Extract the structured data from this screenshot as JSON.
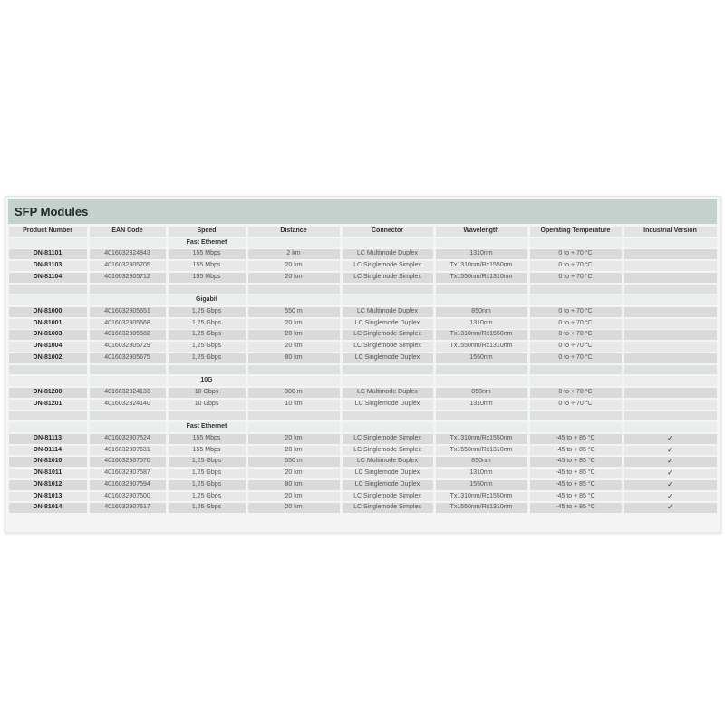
{
  "title": "SFP Modules",
  "columns": [
    "Product Number",
    "EAN Code",
    "Speed",
    "Distance",
    "Connector",
    "Wavelength",
    "Operating Temperature",
    "Industrial Version"
  ],
  "rows": [
    {
      "type": "group",
      "label": "Fast Ethernet"
    },
    {
      "type": "item",
      "product": "DN-81101",
      "ean": "4016032324843",
      "speed": "155 Mbps",
      "distance": "2 km",
      "connector": "LC Multimode Duplex",
      "wavelength": "1310nm",
      "temp": "0 to + 70 °C",
      "industrial": ""
    },
    {
      "type": "item",
      "product": "DN-81103",
      "ean": "4016032305705",
      "speed": "155 Mbps",
      "distance": "20 km",
      "connector": "LC Singlemode Simplex",
      "wavelength": "Tx1310nm/Rx1550nm",
      "temp": "0 to + 70 °C",
      "industrial": ""
    },
    {
      "type": "item",
      "product": "DN-81104",
      "ean": "4016032305712",
      "speed": "155 Mbps",
      "distance": "20 km",
      "connector": "LC Singlemode Simplex",
      "wavelength": "Tx1550nm/Rx1310nm",
      "temp": "0 to + 70 °C",
      "industrial": ""
    },
    {
      "type": "blank"
    },
    {
      "type": "group",
      "label": "Gigabit"
    },
    {
      "type": "item",
      "product": "DN-81000",
      "ean": "4016032305651",
      "speed": "1,25 Gbps",
      "distance": "550 m",
      "connector": "LC Multimode Duplex",
      "wavelength": "850nm",
      "temp": "0 to + 70 °C",
      "industrial": ""
    },
    {
      "type": "item",
      "product": "DN-81001",
      "ean": "4016032305668",
      "speed": "1,25 Gbps",
      "distance": "20 km",
      "connector": "LC Singlemode Duplex",
      "wavelength": "1310nm",
      "temp": "0 to + 70 °C",
      "industrial": ""
    },
    {
      "type": "item",
      "product": "DN-81003",
      "ean": "4016032305682",
      "speed": "1,25 Gbps",
      "distance": "20 km",
      "connector": "LC Singlemode Simplex",
      "wavelength": "Tx1310nm/Rx1550nm",
      "temp": "0 to + 70 °C",
      "industrial": ""
    },
    {
      "type": "item",
      "product": "DN-81004",
      "ean": "4016032305729",
      "speed": "1,25 Gbps",
      "distance": "20 km",
      "connector": "LC Singlemode Simplex",
      "wavelength": "Tx1550nm/Rx1310nm",
      "temp": "0 to + 70 °C",
      "industrial": ""
    },
    {
      "type": "item",
      "product": "DN-81002",
      "ean": "4016032305675",
      "speed": "1,25 Gbps",
      "distance": "80 km",
      "connector": "LC Singlemode Duplex",
      "wavelength": "1550nm",
      "temp": "0 to + 70 °C",
      "industrial": ""
    },
    {
      "type": "blank"
    },
    {
      "type": "group",
      "label": "10G"
    },
    {
      "type": "item",
      "product": "DN-81200",
      "ean": "4016032324133",
      "speed": "10 Gbps",
      "distance": "300 m",
      "connector": "LC Multimode Duplex",
      "wavelength": "850nm",
      "temp": "0 to + 70 °C",
      "industrial": ""
    },
    {
      "type": "item",
      "product": "DN-81201",
      "ean": "4016032324140",
      "speed": "10 Gbps",
      "distance": "10 km",
      "connector": "LC Singlemode Duplex",
      "wavelength": "1310nm",
      "temp": "0 to + 70 °C",
      "industrial": ""
    },
    {
      "type": "blank"
    },
    {
      "type": "group",
      "label": "Fast Ethernet"
    },
    {
      "type": "item",
      "product": "DN-81113",
      "ean": "4016032307624",
      "speed": "155 Mbps",
      "distance": "20 km",
      "connector": "LC Singlemode Simplex",
      "wavelength": "Tx1310nm/Rx1550nm",
      "temp": "-45 to + 85 °C",
      "industrial": "✓"
    },
    {
      "type": "item",
      "product": "DN-81114",
      "ean": "4016032307631",
      "speed": "155 Mbps",
      "distance": "20 km",
      "connector": "LC Singlemode Simplex",
      "wavelength": "Tx1550nm/Rx1310nm",
      "temp": "-45 to + 85 °C",
      "industrial": "✓"
    },
    {
      "type": "item",
      "product": "DN-81010",
      "ean": "4016032307570",
      "speed": "1,25 Gbps",
      "distance": "550 m",
      "connector": "LC Multimode Duplex",
      "wavelength": "850nm",
      "temp": "-45 to + 85 °C",
      "industrial": "✓"
    },
    {
      "type": "item",
      "product": "DN-81011",
      "ean": "4016032307587",
      "speed": "1,25 Gbps",
      "distance": "20 km",
      "connector": "LC Singlemode Duplex",
      "wavelength": "1310nm",
      "temp": "-45 to + 85 °C",
      "industrial": "✓"
    },
    {
      "type": "item",
      "product": "DN-81012",
      "ean": "4016032307594",
      "speed": "1,25 Gbps",
      "distance": "80 km",
      "connector": "LC Singlemode Duplex",
      "wavelength": "1550nm",
      "temp": "-45 to + 85 °C",
      "industrial": "✓"
    },
    {
      "type": "item",
      "product": "DN-81013",
      "ean": "4016032307600",
      "speed": "1,25 Gbps",
      "distance": "20 km",
      "connector": "LC Singlemode Simplex",
      "wavelength": "Tx1310nm/Rx1550nm",
      "temp": "-45 to + 85 °C",
      "industrial": "✓"
    },
    {
      "type": "item",
      "product": "DN-81014",
      "ean": "4016032307617",
      "speed": "1,25 Gbps",
      "distance": "20 km",
      "connector": "LC Singlemode Simplex",
      "wavelength": "Tx1550nm/Rx1310nm",
      "temp": "-45 to + 85 °C",
      "industrial": "✓"
    }
  ],
  "colors": {
    "title_bar": "#c3d2cd",
    "cell_dark": "#d9dad9",
    "cell_light": "#e7e8e7"
  }
}
